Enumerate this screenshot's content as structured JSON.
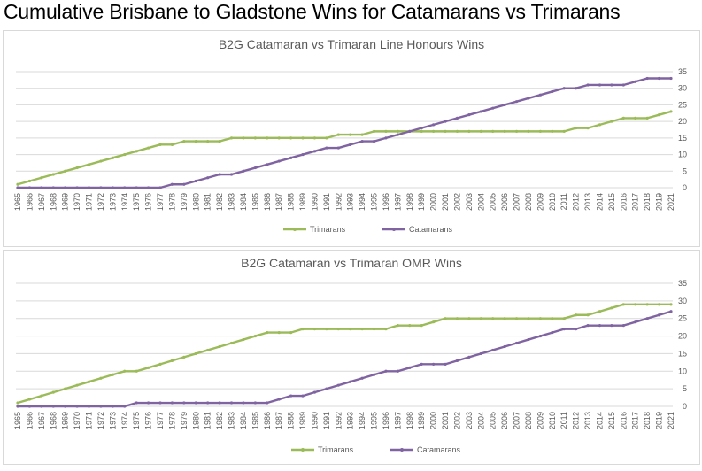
{
  "page": {
    "title": "Cumulative Brisbane to Gladstone Wins for Catamarans vs Trimarans"
  },
  "colors": {
    "trimarans": "#9bbb59",
    "catamarans": "#8064a2",
    "grid": "#d9d9d9",
    "axis_text": "#595959"
  },
  "chart_data": [
    {
      "type": "line",
      "title": "B2G Catamaran vs Trimaran Line Honours Wins",
      "xlabel": "",
      "ylabel": "",
      "ylim": [
        0,
        35
      ],
      "yticks": [
        0,
        5,
        10,
        15,
        20,
        25,
        30,
        35
      ],
      "grid": true,
      "legend_position": "bottom",
      "categories": [
        "1965",
        "1966",
        "1967",
        "1968",
        "1969",
        "1970",
        "1971",
        "1972",
        "1973",
        "1974",
        "1975",
        "1976",
        "1977",
        "1978",
        "1979",
        "1980",
        "1981",
        "1982",
        "1983",
        "1984",
        "1985",
        "1986",
        "1987",
        "1988",
        "1989",
        "1990",
        "1991",
        "1992",
        "1993",
        "1994",
        "1995",
        "1996",
        "1997",
        "1998",
        "1999",
        "2000",
        "2001",
        "2002",
        "2003",
        "2004",
        "2005",
        "2006",
        "2007",
        "2008",
        "2009",
        "2010",
        "2011",
        "2012",
        "2013",
        "2014",
        "2015",
        "2016",
        "2017",
        "2018",
        "2019",
        "2021"
      ],
      "series": [
        {
          "name": "Trimarans",
          "color": "#9bbb59",
          "values": [
            1,
            2,
            3,
            4,
            5,
            6,
            7,
            8,
            9,
            10,
            11,
            12,
            13,
            13,
            14,
            14,
            14,
            14,
            15,
            15,
            15,
            15,
            15,
            15,
            15,
            15,
            15,
            16,
            16,
            16,
            17,
            17,
            17,
            17,
            17,
            17,
            17,
            17,
            17,
            17,
            17,
            17,
            17,
            17,
            17,
            17,
            17,
            18,
            18,
            19,
            20,
            21,
            21,
            21,
            22,
            23
          ]
        },
        {
          "name": "Catamarans",
          "color": "#8064a2",
          "values": [
            0,
            0,
            0,
            0,
            0,
            0,
            0,
            0,
            0,
            0,
            0,
            0,
            0,
            1,
            1,
            2,
            3,
            4,
            4,
            5,
            6,
            7,
            8,
            9,
            10,
            11,
            12,
            12,
            13,
            14,
            14,
            15,
            16,
            17,
            18,
            19,
            20,
            21,
            22,
            23,
            24,
            25,
            26,
            27,
            28,
            29,
            30,
            30,
            31,
            31,
            31,
            31,
            32,
            33,
            33,
            33
          ]
        }
      ]
    },
    {
      "type": "line",
      "title": "B2G Catamaran vs Trimaran OMR Wins",
      "xlabel": "",
      "ylabel": "",
      "ylim": [
        0,
        35
      ],
      "yticks": [
        0,
        5,
        10,
        15,
        20,
        25,
        30,
        35
      ],
      "grid": true,
      "legend_position": "bottom",
      "categories": [
        "1965",
        "1966",
        "1967",
        "1968",
        "1969",
        "1970",
        "1971",
        "1972",
        "1973",
        "1974",
        "1975",
        "1976",
        "1977",
        "1978",
        "1979",
        "1980",
        "1981",
        "1982",
        "1983",
        "1984",
        "1985",
        "1986",
        "1987",
        "1988",
        "1989",
        "1990",
        "1991",
        "1992",
        "1993",
        "1994",
        "1995",
        "1996",
        "1997",
        "1998",
        "1999",
        "2000",
        "2001",
        "2002",
        "2003",
        "2004",
        "2005",
        "2006",
        "2007",
        "2008",
        "2009",
        "2010",
        "2011",
        "2012",
        "2013",
        "2014",
        "2015",
        "2016",
        "2017",
        "2018",
        "2019",
        "2021"
      ],
      "series": [
        {
          "name": "Trimarans",
          "color": "#9bbb59",
          "values": [
            1,
            2,
            3,
            4,
            5,
            6,
            7,
            8,
            9,
            10,
            10,
            11,
            12,
            13,
            14,
            15,
            16,
            17,
            18,
            19,
            20,
            21,
            21,
            21,
            22,
            22,
            22,
            22,
            22,
            22,
            22,
            22,
            23,
            23,
            23,
            24,
            25,
            25,
            25,
            25,
            25,
            25,
            25,
            25,
            25,
            25,
            25,
            26,
            26,
            27,
            28,
            29,
            29,
            29,
            29,
            29
          ]
        },
        {
          "name": "Catamarans",
          "color": "#8064a2",
          "values": [
            0,
            0,
            0,
            0,
            0,
            0,
            0,
            0,
            0,
            0,
            1,
            1,
            1,
            1,
            1,
            1,
            1,
            1,
            1,
            1,
            1,
            1,
            2,
            3,
            3,
            4,
            5,
            6,
            7,
            8,
            9,
            10,
            10,
            11,
            12,
            12,
            12,
            13,
            14,
            15,
            16,
            17,
            18,
            19,
            20,
            21,
            22,
            22,
            23,
            23,
            23,
            23,
            24,
            25,
            26,
            27
          ]
        }
      ]
    }
  ]
}
